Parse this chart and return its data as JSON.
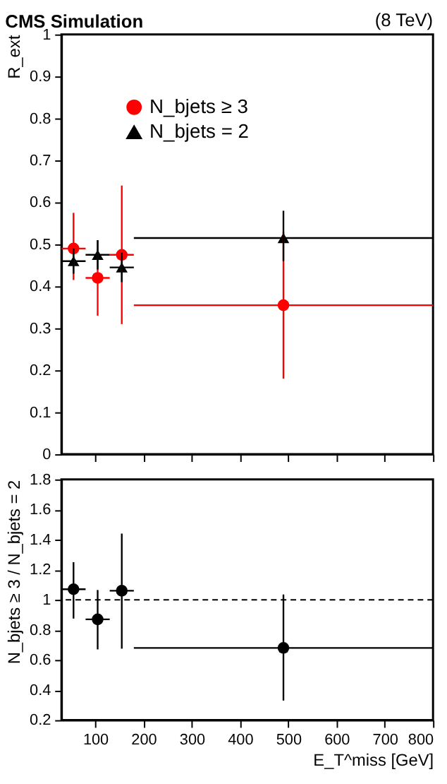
{
  "chart_data": [
    {
      "type": "scatter",
      "title": "CMS Simulation",
      "annotations": [
        "(8 TeV)"
      ],
      "ylabel": "R_ext",
      "xlim": [
        30,
        800
      ],
      "ylim": [
        0,
        1
      ],
      "xticks": [
        100,
        200,
        300,
        400,
        500,
        600,
        700,
        800
      ],
      "yticks": [
        0,
        0.1,
        0.2,
        0.3,
        0.4,
        0.5,
        0.6,
        0.7,
        0.8,
        0.9,
        1
      ],
      "tick_labels": "y",
      "legend": "top left",
      "grid": false,
      "series": [
        {
          "name": "N_bjets ≥ 3",
          "color": "#ff0000",
          "marker": "circle",
          "x": [
            55,
            105,
            155,
            490
          ],
          "values": [
            0.49,
            0.42,
            0.475,
            0.355
          ],
          "errors": [
            [
              0.415,
              0.575
            ],
            [
              0.33,
              0.51
            ],
            [
              0.31,
              0.64
            ],
            [
              0.18,
              0.53
            ]
          ],
          "xerrors": [
            [
              30,
              80
            ],
            [
              80,
              130
            ],
            [
              130,
              180
            ],
            [
              180,
              800
            ]
          ]
        },
        {
          "name": "N_bjets = 2",
          "color": "#000000",
          "marker": "triangle",
          "x": [
            55,
            105,
            155,
            490
          ],
          "values": [
            0.46,
            0.475,
            0.445,
            0.515
          ],
          "errors": [
            [
              0.43,
              0.49
            ],
            [
              0.44,
              0.51
            ],
            [
              0.41,
              0.48
            ],
            [
              0.46,
              0.58
            ]
          ],
          "xerrors": [
            [
              30,
              80
            ],
            [
              80,
              130
            ],
            [
              130,
              180
            ],
            [
              180,
              800
            ]
          ]
        }
      ]
    },
    {
      "type": "scatter",
      "xlabel": "E_T^miss [GeV]",
      "ylabel": "N_bjets ≥ 3 / N_bjets = 2",
      "xlim": [
        30,
        800
      ],
      "ylim": [
        0.2,
        1.8
      ],
      "xticks": [
        100,
        200,
        300,
        400,
        500,
        600,
        700,
        800
      ],
      "yticks": [
        0.2,
        0.4,
        0.6,
        0.8,
        1,
        1.2,
        1.4,
        1.6,
        1.8
      ],
      "grid": false,
      "ref_lines": [
        {
          "axis": "y",
          "value": 1,
          "line_style": "dashed",
          "color": "#000000"
        }
      ],
      "series": [
        {
          "color": "#000000",
          "marker": "circle",
          "x": [
            55,
            105,
            155,
            490
          ],
          "values": [
            1.07,
            0.87,
            1.06,
            0.68
          ],
          "errors": [
            [
              0.875,
              1.25
            ],
            [
              0.67,
              1.065
            ],
            [
              0.675,
              1.44
            ],
            [
              0.33,
              1.035
            ]
          ],
          "xerrors": [
            [
              30,
              80
            ],
            [
              80,
              130
            ],
            [
              130,
              180
            ],
            [
              180,
              800
            ]
          ]
        }
      ]
    }
  ]
}
